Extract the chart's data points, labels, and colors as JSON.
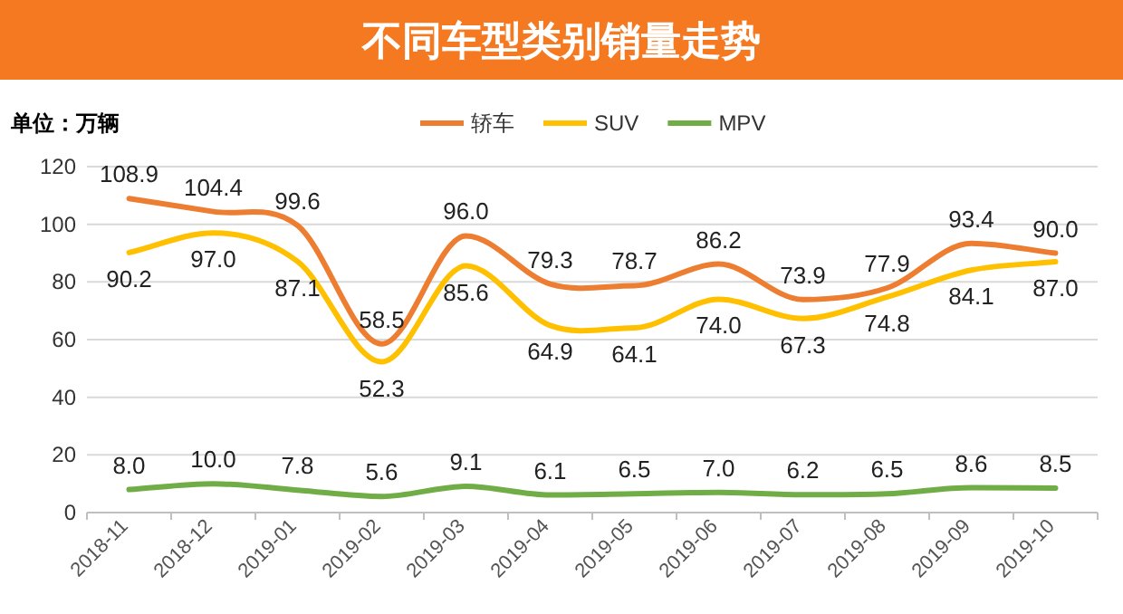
{
  "chart_data": {
    "type": "line",
    "title": "不同车型类别销量走势",
    "ylabel": "单位：万辆",
    "categories": [
      "2018-11",
      "2018-12",
      "2019-01",
      "2019-02",
      "2019-03",
      "2019-04",
      "2019-05",
      "2019-06",
      "2019-07",
      "2019-08",
      "2019-09",
      "2019-10"
    ],
    "series": [
      {
        "name": "轿车",
        "color": "#ed7d31",
        "values": [
          108.9,
          104.4,
          99.6,
          58.5,
          96.0,
          79.3,
          78.7,
          86.2,
          73.9,
          77.9,
          93.4,
          90.0
        ],
        "value_labels": [
          "108.9",
          "104.4",
          "99.6",
          "58.5",
          "96.0",
          "79.3",
          "78.7",
          "86.2",
          "73.9",
          "77.9",
          "93.4",
          "90.0"
        ]
      },
      {
        "name": "SUV",
        "color": "#ffc000",
        "values": [
          90.2,
          97.0,
          87.1,
          52.3,
          85.6,
          64.9,
          64.1,
          74.0,
          67.3,
          74.8,
          84.1,
          87.0
        ],
        "value_labels": [
          "90.2",
          "97.0",
          "87.1",
          "52.3",
          "85.6",
          "64.9",
          "64.1",
          "74.0",
          "67.3",
          "74.8",
          "84.1",
          "87.0"
        ]
      },
      {
        "name": "MPV",
        "color": "#70ad47",
        "values": [
          8.0,
          10.0,
          7.8,
          5.6,
          9.1,
          6.1,
          6.5,
          7.0,
          6.2,
          6.5,
          8.6,
          8.5
        ],
        "value_labels": [
          "8.0",
          "10.0",
          "7.8",
          "5.6",
          "9.1",
          "6.1",
          "6.5",
          "7.0",
          "6.2",
          "6.5",
          "8.6",
          "8.5"
        ]
      }
    ],
    "ylim": [
      0,
      120
    ],
    "yticks": [
      0,
      20,
      40,
      60,
      80,
      100,
      120
    ],
    "grid": "y",
    "legend": "top",
    "marker": "none",
    "line_style": "solid"
  }
}
